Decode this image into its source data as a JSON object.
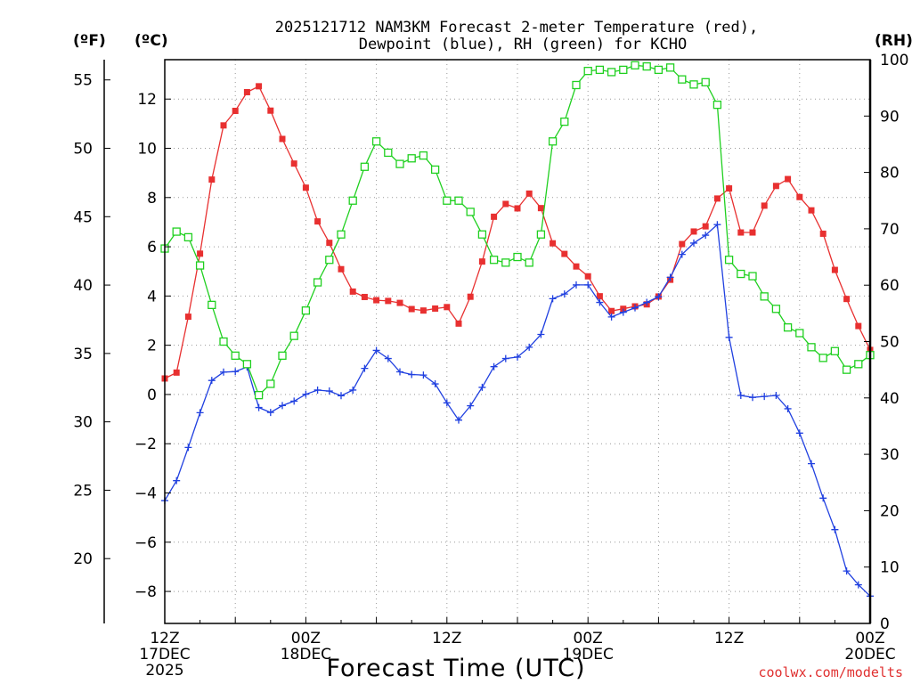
{
  "chart_data": {
    "type": "line",
    "title_line1": "2025121712 NAM3KM Forecast 2-meter Temperature (red),",
    "title_line2": "Dewpoint (blue), RH (green) for KCHO",
    "xlabel": "Forecast Time (UTC)",
    "credit": "coolwx.com/modelts",
    "units": {
      "fahrenheit": "(ºF)",
      "celsius": "(ºC)",
      "rh": "(RH)"
    },
    "x_hours_range": [
      0,
      60
    ],
    "celsius_range": [
      -9.3,
      13.6
    ],
    "rh_range": [
      0,
      100
    ],
    "celsius_ticks": [
      {
        "value": 12,
        "label": "12"
      },
      {
        "value": 10,
        "label": "10"
      },
      {
        "value": 8,
        "label": "8"
      },
      {
        "value": 6,
        "label": "6"
      },
      {
        "value": 4,
        "label": "4"
      },
      {
        "value": 2,
        "label": "2"
      },
      {
        "value": 0,
        "label": "0"
      },
      {
        "value": -2,
        "label": "−2"
      },
      {
        "value": -4,
        "label": "−4"
      },
      {
        "value": -6,
        "label": "−6"
      },
      {
        "value": -8,
        "label": "−8"
      }
    ],
    "fahrenheit_ticks": [
      {
        "value": 55,
        "label": "55"
      },
      {
        "value": 50,
        "label": "50"
      },
      {
        "value": 45,
        "label": "45"
      },
      {
        "value": 40,
        "label": "40"
      },
      {
        "value": 35,
        "label": "35"
      },
      {
        "value": 30,
        "label": "30"
      },
      {
        "value": 25,
        "label": "25"
      },
      {
        "value": 20,
        "label": "20"
      }
    ],
    "rh_ticks": [
      {
        "value": 100,
        "label": "100"
      },
      {
        "value": 90,
        "label": "90"
      },
      {
        "value": 80,
        "label": "80"
      },
      {
        "value": 70,
        "label": "70"
      },
      {
        "value": 60,
        "label": "60"
      },
      {
        "value": 50,
        "label": "50"
      },
      {
        "value": 40,
        "label": "40"
      },
      {
        "value": 30,
        "label": "30"
      },
      {
        "value": 20,
        "label": "20"
      },
      {
        "value": 10,
        "label": "10"
      },
      {
        "value": 0,
        "label": "0"
      }
    ],
    "x_ticks": [
      {
        "hour": 0,
        "lines": [
          "12Z",
          "17DEC",
          "2025"
        ]
      },
      {
        "hour": 12,
        "lines": [
          "00Z",
          "18DEC"
        ]
      },
      {
        "hour": 24,
        "lines": [
          "12Z"
        ]
      },
      {
        "hour": 36,
        "lines": [
          "00Z",
          "19DEC"
        ]
      },
      {
        "hour": 48,
        "lines": [
          "12Z"
        ]
      },
      {
        "hour": 60,
        "lines": [
          "00Z",
          "20DEC"
        ]
      }
    ],
    "series": [
      {
        "name": "2-meter Temperature (ºC)",
        "color": "#e83030",
        "marker": "filled-square",
        "axis": "celsius",
        "values": [
          0.65,
          0.89,
          3.16,
          5.72,
          8.73,
          10.93,
          11.52,
          12.28,
          12.52,
          11.53,
          10.38,
          9.38,
          8.4,
          7.03,
          6.16,
          5.09,
          4.18,
          3.96,
          3.83,
          3.8,
          3.72,
          3.47,
          3.41,
          3.49,
          3.55,
          2.88,
          3.97,
          5.4,
          7.22,
          7.74,
          7.56,
          8.16,
          7.57,
          6.14,
          5.71,
          5.2,
          4.8,
          3.99,
          3.39,
          3.48,
          3.58,
          3.66,
          3.98,
          4.66,
          6.11,
          6.62,
          6.83,
          7.96,
          8.37,
          6.58,
          6.58,
          7.67,
          8.47,
          8.75,
          8.02,
          7.48,
          6.53,
          5.06,
          3.88,
          2.78,
          1.81
        ]
      },
      {
        "name": "Dewpoint (ºC)",
        "color": "#2040e0",
        "marker": "plus",
        "axis": "celsius",
        "values": [
          -4.31,
          -3.5,
          -2.15,
          -0.74,
          0.57,
          0.91,
          0.93,
          1.12,
          -0.53,
          -0.73,
          -0.45,
          -0.27,
          0.01,
          0.18,
          0.14,
          -0.05,
          0.18,
          1.06,
          1.79,
          1.46,
          0.92,
          0.81,
          0.79,
          0.43,
          -0.34,
          -1.04,
          -0.46,
          0.29,
          1.13,
          1.46,
          1.52,
          1.92,
          2.44,
          3.89,
          4.08,
          4.45,
          4.45,
          3.74,
          3.15,
          3.34,
          3.52,
          3.74,
          3.97,
          4.76,
          5.69,
          6.15,
          6.47,
          6.9,
          2.32,
          -0.04,
          -0.12,
          -0.08,
          -0.04,
          -0.58,
          -1.57,
          -2.81,
          -4.21,
          -5.49,
          -7.17,
          -7.73,
          -8.19
        ]
      },
      {
        "name": "RH (%)",
        "color": "#20d020",
        "marker": "open-square",
        "axis": "rh",
        "values": [
          66.5,
          69.5,
          68.5,
          63.5,
          56.5,
          50,
          47.5,
          46,
          40.5,
          42.5,
          47.5,
          51,
          55.5,
          60.5,
          64.5,
          69,
          75,
          81,
          85.5,
          83.5,
          81.5,
          82.5,
          83,
          80.5,
          75,
          75,
          73,
          69,
          64.5,
          64,
          65,
          64,
          69,
          85.5,
          89,
          95.5,
          98,
          98.2,
          97.8,
          98.2,
          99,
          98.8,
          98.2,
          98.6,
          96.5,
          95.6,
          96,
          92,
          64.5,
          62,
          61.6,
          58,
          55.8,
          52.5,
          51.5,
          49,
          47.1,
          48.3,
          45,
          46,
          47.6
        ]
      }
    ]
  }
}
